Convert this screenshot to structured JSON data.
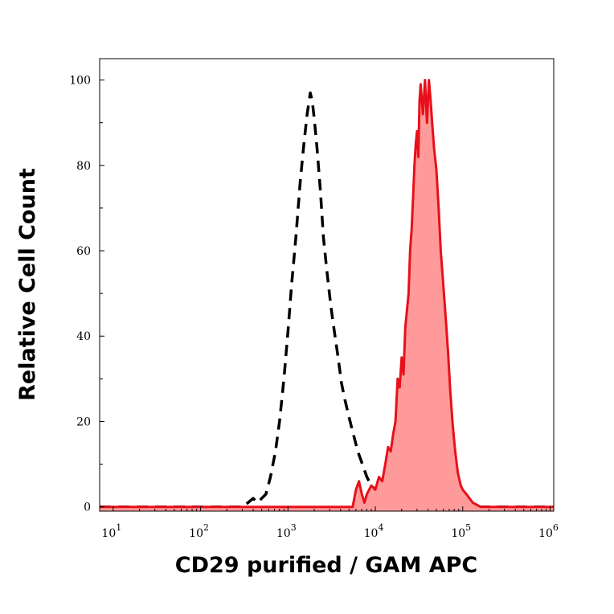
{
  "chart_data": {
    "type": "area",
    "xlabel": "CD29 purified / GAM APC",
    "ylabel": "Relative Cell Count",
    "x_scale": "log",
    "xlim": [
      7,
      1100000
    ],
    "ylim": [
      -1,
      105
    ],
    "x_ticks": [
      {
        "value": 10,
        "base": "10",
        "exp": "1"
      },
      {
        "value": 100,
        "base": "10",
        "exp": "2"
      },
      {
        "value": 1000,
        "base": "10",
        "exp": "3"
      },
      {
        "value": 10000,
        "base": "10",
        "exp": "4"
      },
      {
        "value": 100000,
        "base": "10",
        "exp": "5"
      },
      {
        "value": 1000000,
        "base": "10",
        "exp": "6"
      }
    ],
    "y_ticks": [
      0,
      20,
      40,
      60,
      80,
      100
    ],
    "grid": false,
    "legend": "none",
    "series": [
      {
        "style": "dashed",
        "color": "#000000",
        "fill": "none",
        "points": [
          [
            7,
            0
          ],
          [
            300,
            0
          ],
          [
            350,
            1
          ],
          [
            400,
            2
          ],
          [
            450,
            1
          ],
          [
            500,
            2
          ],
          [
            560,
            3
          ],
          [
            630,
            7
          ],
          [
            720,
            13
          ],
          [
            800,
            20
          ],
          [
            900,
            30
          ],
          [
            1000,
            41
          ],
          [
            1100,
            52
          ],
          [
            1230,
            63
          ],
          [
            1380,
            76
          ],
          [
            1520,
            85
          ],
          [
            1660,
            92
          ],
          [
            1800,
            97
          ],
          [
            1900,
            95
          ],
          [
            2000,
            91
          ],
          [
            2150,
            84
          ],
          [
            2350,
            74
          ],
          [
            2550,
            63
          ],
          [
            2800,
            55
          ],
          [
            3100,
            47
          ],
          [
            3400,
            41
          ],
          [
            3750,
            35
          ],
          [
            4100,
            29
          ],
          [
            4500,
            25
          ],
          [
            5000,
            21
          ],
          [
            5600,
            17
          ],
          [
            6300,
            13
          ],
          [
            7100,
            10
          ],
          [
            8000,
            7
          ],
          [
            9000,
            5
          ],
          [
            10000,
            4
          ],
          [
            12000,
            3
          ],
          [
            15000,
            2
          ],
          [
            20000,
            2
          ],
          [
            25000,
            1
          ],
          [
            35000,
            1
          ],
          [
            50000,
            0
          ],
          [
            70000,
            0
          ],
          [
            1100000,
            0
          ]
        ]
      },
      {
        "style": "solid",
        "color": "#e8101a",
        "fill": "#ff9a9a",
        "points": [
          [
            7,
            0
          ],
          [
            5500,
            0
          ],
          [
            6000,
            4
          ],
          [
            6500,
            6
          ],
          [
            7000,
            3
          ],
          [
            7500,
            1
          ],
          [
            8000,
            3
          ],
          [
            9000,
            5
          ],
          [
            10000,
            4
          ],
          [
            11000,
            7
          ],
          [
            12000,
            6
          ],
          [
            13000,
            10
          ],
          [
            14000,
            14
          ],
          [
            15000,
            13
          ],
          [
            16000,
            17
          ],
          [
            17000,
            20
          ],
          [
            18000,
            30
          ],
          [
            19000,
            28
          ],
          [
            20000,
            35
          ],
          [
            21000,
            31
          ],
          [
            22000,
            42
          ],
          [
            24000,
            50
          ],
          [
            25000,
            60
          ],
          [
            26000,
            65
          ],
          [
            27000,
            72
          ],
          [
            28000,
            80
          ],
          [
            29000,
            85
          ],
          [
            30000,
            88
          ],
          [
            31000,
            82
          ],
          [
            32000,
            95
          ],
          [
            33000,
            99
          ],
          [
            35000,
            92
          ],
          [
            37000,
            100
          ],
          [
            39000,
            90
          ],
          [
            41000,
            100
          ],
          [
            43000,
            95
          ],
          [
            45000,
            89
          ],
          [
            47000,
            84
          ],
          [
            50000,
            79
          ],
          [
            53000,
            70
          ],
          [
            56000,
            60
          ],
          [
            60000,
            52
          ],
          [
            64000,
            44
          ],
          [
            68000,
            36
          ],
          [
            72000,
            27
          ],
          [
            77000,
            19
          ],
          [
            82000,
            13
          ],
          [
            88000,
            8
          ],
          [
            95000,
            5
          ],
          [
            100000,
            4
          ],
          [
            110000,
            3
          ],
          [
            130000,
            1
          ],
          [
            160000,
            0
          ],
          [
            1100000,
            0
          ]
        ]
      }
    ]
  }
}
